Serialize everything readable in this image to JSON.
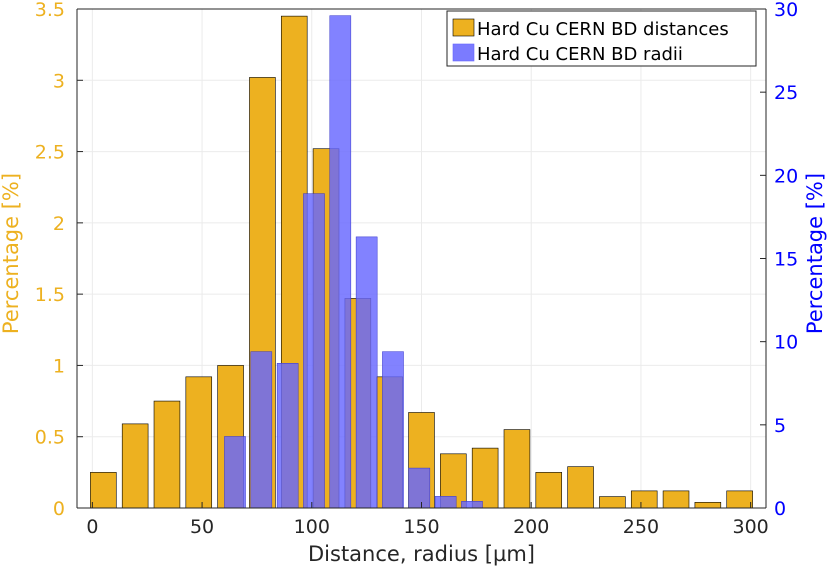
{
  "chart_data": {
    "type": "bar",
    "xlabel": "Distance, radius [µm]",
    "ylabel_left": "Percentage [%]",
    "ylabel_right": "Percentage [%]",
    "xlim": [
      -7,
      307
    ],
    "xticks": [
      "0",
      "50",
      "100",
      "150",
      "200",
      "250",
      "300"
    ],
    "ylim_left": [
      0,
      3.5
    ],
    "yticks_left": [
      "0",
      "0.5",
      "1",
      "1.5",
      "2",
      "2.5",
      "3",
      "3.5"
    ],
    "ylim_right": [
      0,
      30
    ],
    "yticks_right": [
      "0",
      "5",
      "10",
      "15",
      "20",
      "25",
      "30"
    ],
    "grid": true,
    "legend_position": "top-right",
    "series": [
      {
        "name": "Hard Cu CERN BD distances",
        "axis": "left",
        "color": "#EDB120",
        "x": [
          5,
          19.5,
          34,
          48.5,
          63,
          77.5,
          92,
          106.5,
          121,
          135.5,
          150,
          164.5,
          179,
          193.5,
          208,
          222.5,
          237,
          251.5,
          266,
          280.5,
          295
        ],
        "values": [
          0.25,
          0.59,
          0.75,
          0.92,
          1.0,
          3.02,
          3.45,
          2.52,
          1.47,
          0.92,
          0.67,
          0.38,
          0.42,
          0.55,
          0.25,
          0.29,
          0.08,
          0.12,
          0.12,
          0.04,
          0.12
        ]
      },
      {
        "name": "Hard Cu CERN BD radii",
        "axis": "right",
        "color": "#6666FF",
        "x": [
          65,
          77,
          89,
          101,
          113,
          125,
          137,
          149,
          161,
          173
        ],
        "values": [
          4.3,
          9.4,
          8.7,
          18.9,
          29.6,
          16.3,
          9.4,
          2.4,
          0.7,
          0.4
        ]
      }
    ]
  }
}
